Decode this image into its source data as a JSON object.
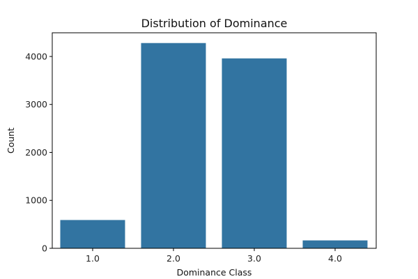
{
  "chart_data": {
    "type": "bar",
    "title": "Distribution of Dominance",
    "xlabel": "Dominance Class",
    "ylabel": "Count",
    "categories": [
      "1.0",
      "2.0",
      "3.0",
      "4.0"
    ],
    "values": [
      590,
      4280,
      3960,
      165
    ],
    "ylim": [
      0,
      4494
    ],
    "yticks": [
      0,
      1000,
      2000,
      3000,
      4000
    ],
    "yticks_labels": [
      "0",
      "1000",
      "2000",
      "3000",
      "4000"
    ],
    "grid": false,
    "legend": "none",
    "bar_color": "#3274a1"
  }
}
